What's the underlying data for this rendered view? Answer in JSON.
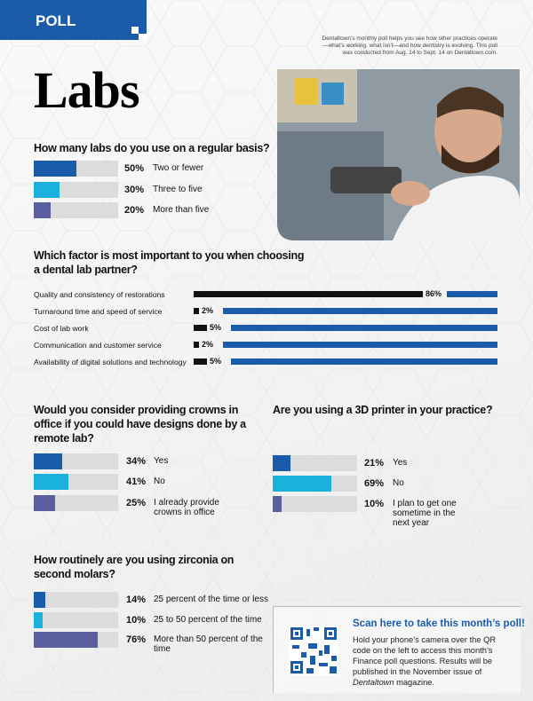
{
  "header": {
    "section": "POLL",
    "title": "Labs",
    "intro": "Dentaltown’s monthly poll helps you see how other practices operate—what’s working, what isn’t—and how dentistry is evolving. This poll was conducted from Aug. 14 to Sept. 14 on Dentaltown.com."
  },
  "chart_data": [
    {
      "type": "bar",
      "title": "How many labs do you use on a regular basis?",
      "categories": [
        "Two or fewer",
        "Three to five",
        "More than five"
      ],
      "values": [
        50,
        30,
        20
      ],
      "value_labels": [
        "50%",
        "30%",
        "20%"
      ],
      "colors": [
        "#1b5caa",
        "#1ab1dc",
        "#5c5f9e"
      ],
      "track_color": "#dcdcdc",
      "xlim": [
        0,
        100
      ]
    },
    {
      "type": "bar",
      "title": "Which factor is most important to you when choosing a dental lab partner?",
      "categories": [
        "Quality and consistency of restorations",
        "Turnaround time and speed of service",
        "Cost of lab work",
        "Communication and customer service",
        "Availability of digital solutions and technology"
      ],
      "values": [
        86,
        2,
        5,
        2,
        5
      ],
      "value_labels": [
        "86%",
        "2%",
        "5%",
        "2%",
        "5%"
      ],
      "color": "#111111",
      "track_color": "#1b5caa",
      "xlim": [
        0,
        100
      ]
    },
    {
      "type": "bar",
      "title": "Would you consider providing crowns in office if you could have designs done by a remote lab?",
      "categories": [
        "Yes",
        "No",
        "I already provide crowns in office"
      ],
      "values": [
        34,
        41,
        25
      ],
      "value_labels": [
        "34%",
        "41%",
        "25%"
      ],
      "colors": [
        "#1b5caa",
        "#1ab1dc",
        "#5c5f9e"
      ],
      "track_color": "#dcdcdc",
      "xlim": [
        0,
        100
      ]
    },
    {
      "type": "bar",
      "title": "Are you using a 3D printer in your practice?",
      "categories": [
        "Yes",
        "No",
        "I plan to get one sometime in the next year"
      ],
      "values": [
        21,
        69,
        10
      ],
      "value_labels": [
        "21%",
        "69%",
        "10%"
      ],
      "colors": [
        "#1b5caa",
        "#1ab1dc",
        "#5c5f9e"
      ],
      "track_color": "#dcdcdc",
      "xlim": [
        0,
        100
      ]
    },
    {
      "type": "bar",
      "title": "How routinely are you using zirconia on second molars?",
      "categories": [
        "25 percent of the time or less",
        "25 to 50 percent of the time",
        "More than 50 percent of the time"
      ],
      "values": [
        14,
        10,
        76
      ],
      "value_labels": [
        "14%",
        "10%",
        "76%"
      ],
      "colors": [
        "#1b5caa",
        "#1ab1dc",
        "#5c5f9e"
      ],
      "track_color": "#dcdcdc",
      "xlim": [
        0,
        100
      ]
    }
  ],
  "cta": {
    "title": "Scan here to take this month’s poll!",
    "body": "Hold your phone’s camera over the QR code on the left to access this month’s Finance poll questions. Results will be published in the November issue of ",
    "publication": "Dentaltown",
    "ending": " magazine."
  }
}
